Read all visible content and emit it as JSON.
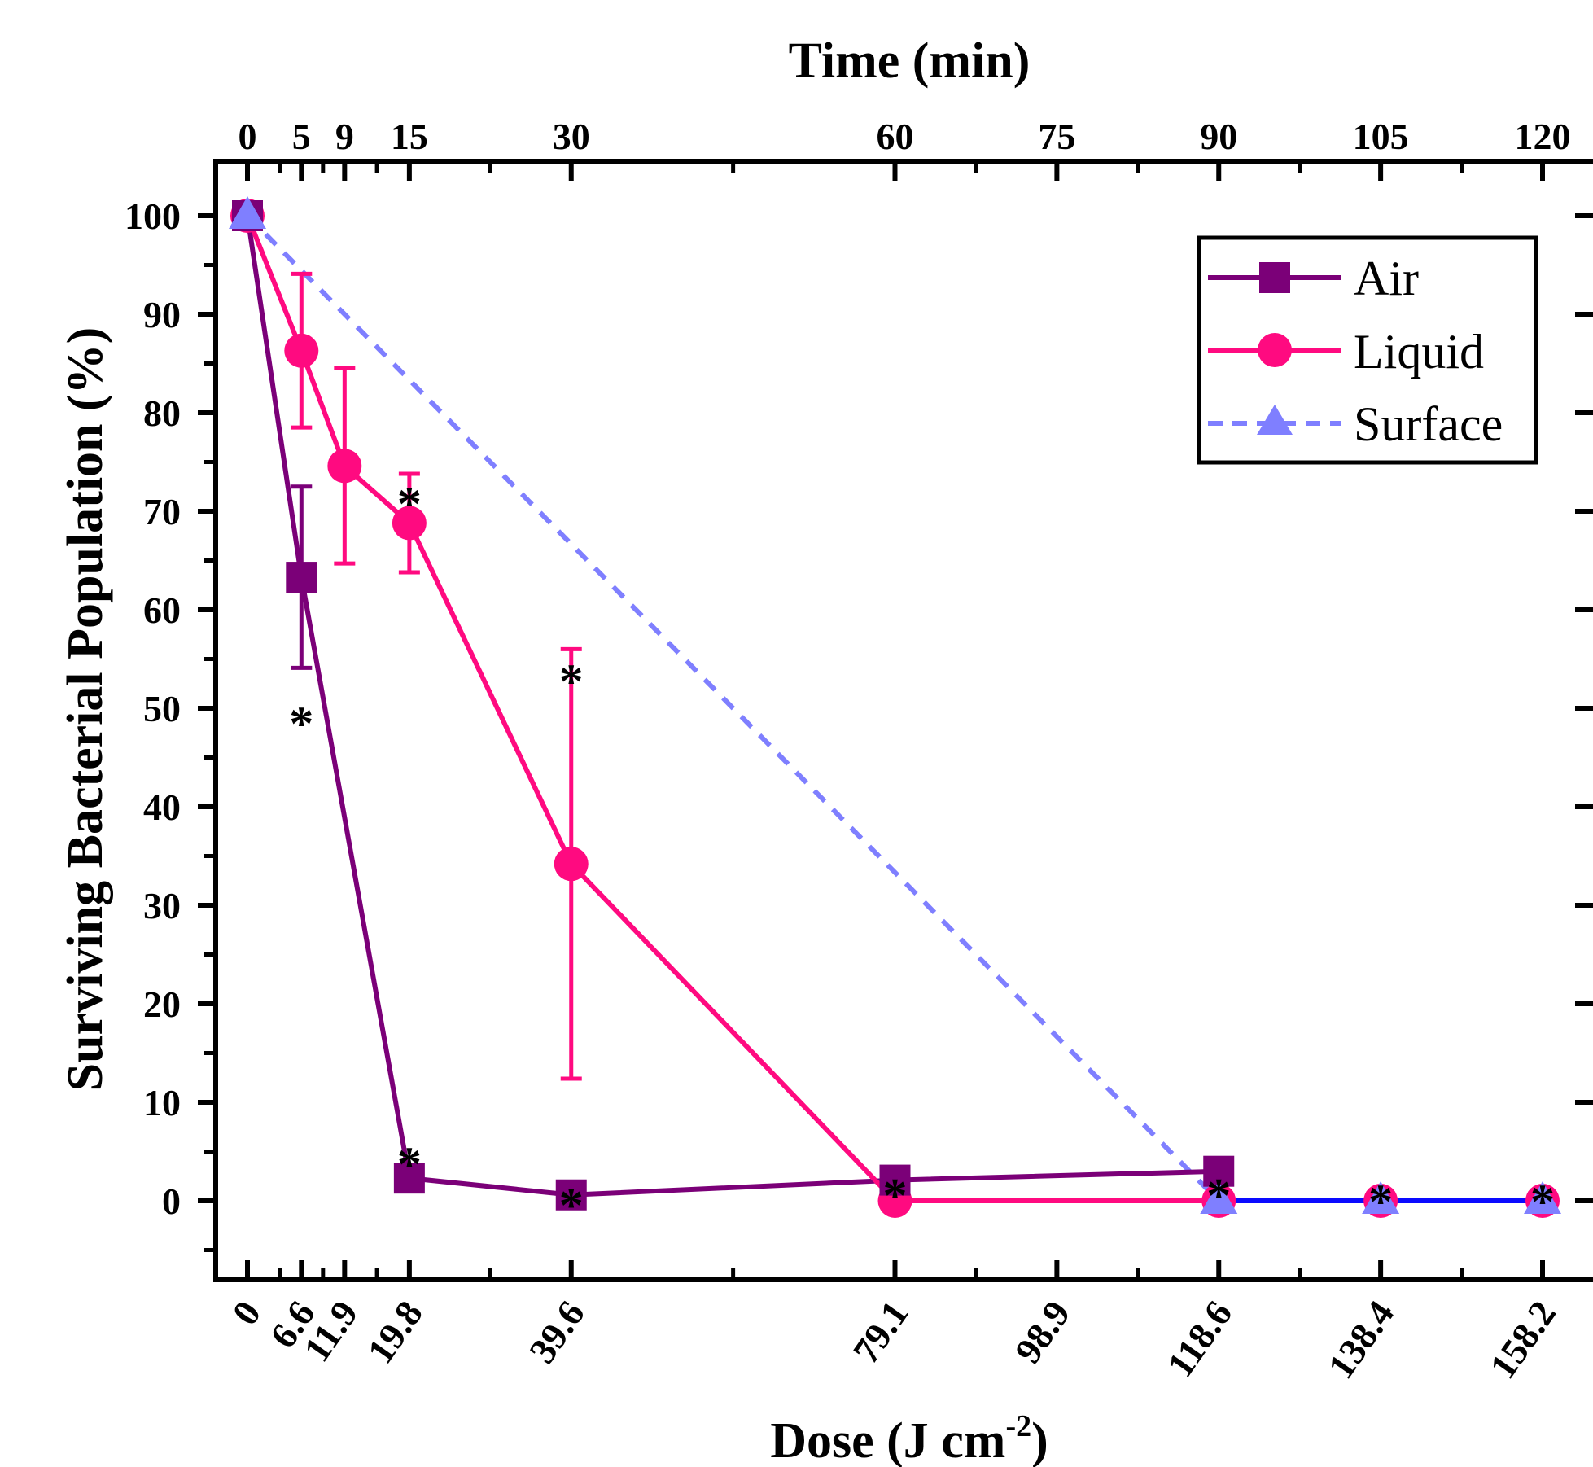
{
  "chart_data": {
    "type": "line",
    "title": "",
    "xlabel_bottom": "Dose (J cm",
    "xlabel_bottom_sup": "-2",
    "xlabel_bottom_end": ")",
    "xlabel_top": "Time (min)",
    "ylabel": "Surviving Bacterial Population (%)",
    "xlim_time": [
      -2,
      124
    ],
    "ylim": [
      -8,
      105
    ],
    "y_ticks": [
      0,
      10,
      20,
      30,
      40,
      50,
      60,
      70,
      80,
      90,
      100
    ],
    "x_top_ticks": [
      {
        "t": 0,
        "label": "0"
      },
      {
        "t": 5,
        "label": "5"
      },
      {
        "t": 9,
        "label": "9"
      },
      {
        "t": 15,
        "label": "15"
      },
      {
        "t": 30,
        "label": "30"
      },
      {
        "t": 60,
        "label": "60"
      },
      {
        "t": 75,
        "label": "75"
      },
      {
        "t": 90,
        "label": "90"
      },
      {
        "t": 105,
        "label": "105"
      },
      {
        "t": 120,
        "label": "120"
      }
    ],
    "x_bottom_ticks": [
      {
        "t": 0,
        "label": "0"
      },
      {
        "t": 5,
        "label": "6.6"
      },
      {
        "t": 9,
        "label": "11.9"
      },
      {
        "t": 15,
        "label": "19.8"
      },
      {
        "t": 30,
        "label": "39.6"
      },
      {
        "t": 60,
        "label": "79.1"
      },
      {
        "t": 75,
        "label": "98.9"
      },
      {
        "t": 90,
        "label": "118.6"
      },
      {
        "t": 105,
        "label": "138.4"
      },
      {
        "t": 120,
        "label": "158.2"
      }
    ],
    "minor_ticks_time": [
      3,
      7,
      12,
      22.5,
      45,
      67.5,
      82.5,
      97.5,
      112.5
    ],
    "series": [
      {
        "name": "Air",
        "color": "#7b0078",
        "marker": "square",
        "dash": "solid",
        "x": [
          0,
          5,
          15,
          30,
          60,
          90
        ],
        "y": [
          100,
          63.3,
          2.3,
          0.6,
          2.1,
          3.0
        ],
        "err": [
          0,
          9.2,
          1.0,
          0,
          0,
          0
        ]
      },
      {
        "name": "Liquid",
        "color": "#ff0a80",
        "marker": "circle",
        "dash": "solid",
        "x": [
          0,
          5,
          9,
          15,
          30,
          60,
          90,
          105,
          120
        ],
        "y": [
          100,
          86.3,
          74.6,
          68.8,
          34.2,
          0,
          0,
          0,
          0
        ],
        "err": [
          0,
          7.8,
          9.9,
          5.0,
          21.8,
          0,
          0,
          0,
          0
        ]
      },
      {
        "name": "Surface",
        "color": "#7f7fff",
        "marker": "triangle",
        "dash": "dashed",
        "x": [
          0,
          90,
          105,
          120
        ],
        "y": [
          100,
          0,
          0,
          0
        ],
        "err": [
          0,
          0,
          0,
          0
        ]
      }
    ],
    "baseline_segment": {
      "color": "#0a0aff",
      "x": [
        90,
        120
      ],
      "y": 0
    },
    "annotations": [
      {
        "text": "*",
        "t": 5,
        "y": 50.5
      },
      {
        "text": "*",
        "t": 15,
        "y": 72.8
      },
      {
        "text": "*",
        "t": 30,
        "y": 54.8
      },
      {
        "text": "*",
        "t": 15,
        "y": 5.8
      },
      {
        "text": "*",
        "t": 30,
        "y": 1.6
      },
      {
        "text": "*",
        "t": 60,
        "y": 2.6
      },
      {
        "text": "*",
        "t": 90,
        "y": 2.6
      },
      {
        "text": "*",
        "t": 105,
        "y": 2.0
      },
      {
        "text": "*",
        "t": 120,
        "y": 2.0
      }
    ],
    "legend": {
      "placement": "top-right",
      "entries": [
        "Air",
        "Liquid",
        "Surface"
      ]
    },
    "grid": false
  }
}
